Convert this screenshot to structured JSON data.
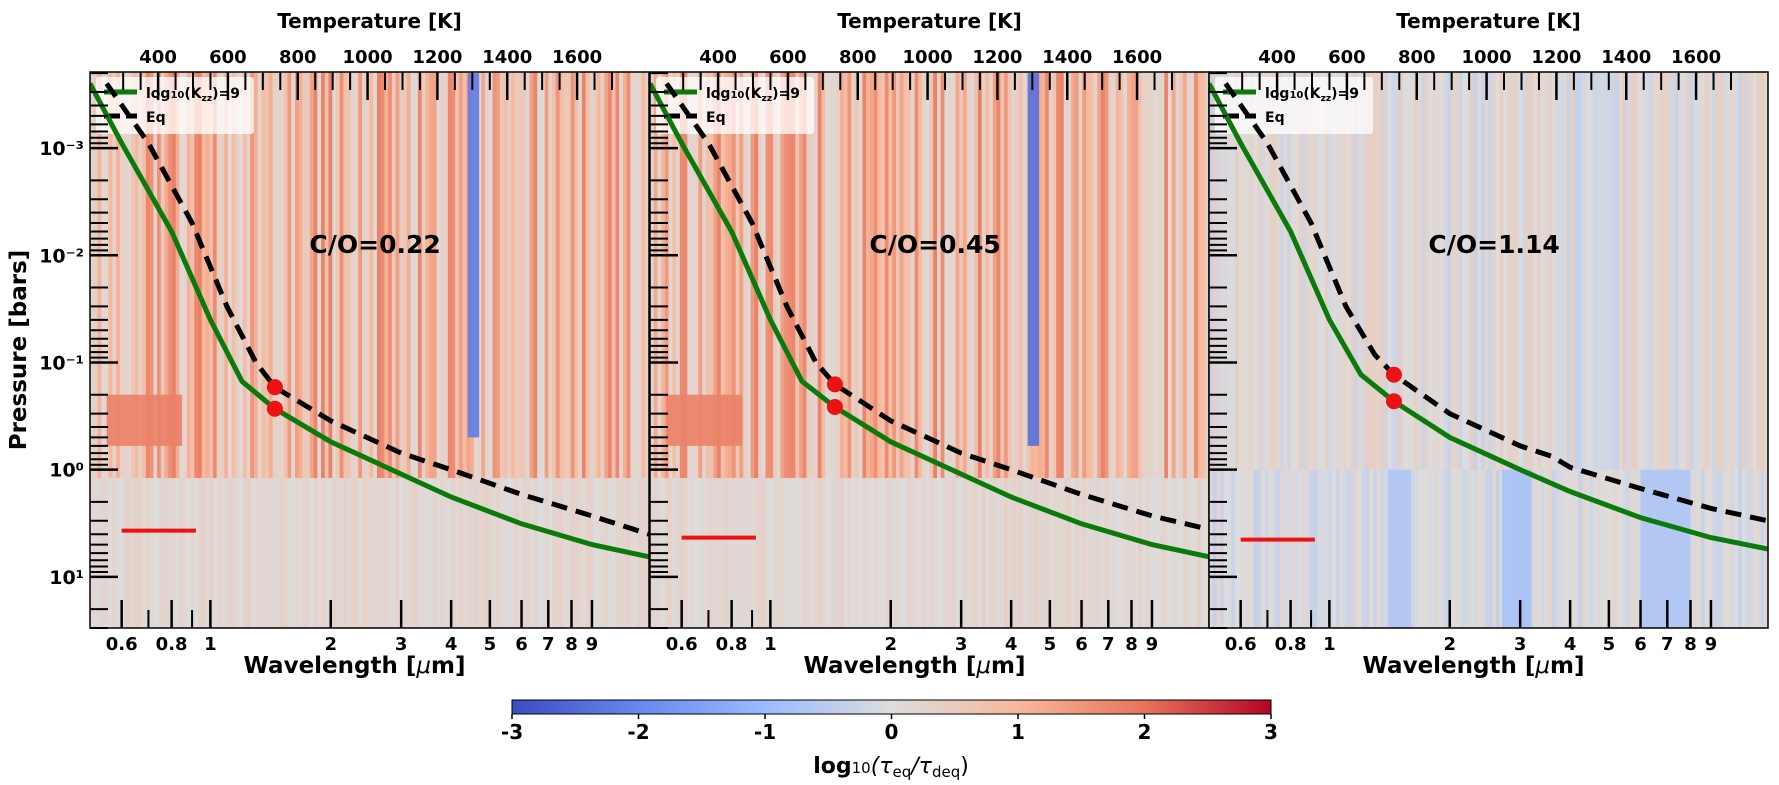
{
  "chart_data": {
    "type": "heatmap",
    "figure_title": "",
    "panels": [
      {
        "annotation": "C/O=0.22",
        "xlabel": "Wavelength [μm]",
        "ylabel": "Pressure [bars]",
        "top_xlabel": "Temperature [K]",
        "legend": [
          {
            "label": "log10(Kzz)=9",
            "style": "solid",
            "color": "#0a7a0a"
          },
          {
            "label": "Eq",
            "style": "dashed",
            "color": "#000000"
          }
        ],
        "red_dots": [
          {
            "wavelength_um": 1.45,
            "pressure_bar": 0.17
          },
          {
            "wavelength_um": 1.45,
            "pressure_bar": 0.27
          }
        ],
        "red_segment": {
          "wavelength_um": [
            0.6,
            0.92
          ],
          "pressure_bar": 3.7
        },
        "kzz_curve": [
          [
            0.5,
            0.00025
          ],
          [
            0.6,
            0.0009
          ],
          [
            0.8,
            0.006
          ],
          [
            1.0,
            0.04
          ],
          [
            1.2,
            0.15
          ],
          [
            1.45,
            0.27
          ],
          [
            2.0,
            0.55
          ],
          [
            3.0,
            1.1
          ],
          [
            4.0,
            1.8
          ],
          [
            6.0,
            3.2
          ],
          [
            9.0,
            5.0
          ],
          [
            12.5,
            6.5
          ]
        ],
        "eq_curve": [
          [
            0.55,
            0.00025
          ],
          [
            0.7,
            0.0009
          ],
          [
            0.9,
            0.005
          ],
          [
            1.1,
            0.03
          ],
          [
            1.3,
            0.1
          ],
          [
            1.45,
            0.17
          ],
          [
            2.0,
            0.35
          ],
          [
            3.0,
            0.7
          ],
          [
            4.0,
            1.0
          ],
          [
            6.0,
            1.7
          ],
          [
            9.0,
            2.7
          ],
          [
            12.5,
            4.0
          ]
        ],
        "features": [
          {
            "wavelength_um": [
              4.4,
              4.7
            ],
            "value": -2.2,
            "pressure_range": [
              0.0002,
              0.5
            ]
          },
          {
            "wavelength_um": [
              0.55,
              0.85
            ],
            "value": 1.8,
            "pressure_range": [
              0.2,
              0.6
            ]
          }
        ],
        "background": "mostly positive (red) vertical bands above ~1 bar, neutral below"
      },
      {
        "annotation": "C/O=0.45",
        "xlabel": "Wavelength [μm]",
        "top_xlabel": "Temperature [K]",
        "legend": [
          {
            "label": "log10(Kzz)=9",
            "style": "solid",
            "color": "#0a7a0a"
          },
          {
            "label": "Eq",
            "style": "dashed",
            "color": "#000000"
          }
        ],
        "red_dots": [
          {
            "wavelength_um": 1.45,
            "pressure_bar": 0.16
          },
          {
            "wavelength_um": 1.45,
            "pressure_bar": 0.26
          }
        ],
        "red_segment": {
          "wavelength_um": [
            0.6,
            0.92
          ],
          "pressure_bar": 4.3
        },
        "kzz_curve": [
          [
            0.5,
            0.00025
          ],
          [
            0.6,
            0.0009
          ],
          [
            0.8,
            0.006
          ],
          [
            1.0,
            0.04
          ],
          [
            1.2,
            0.15
          ],
          [
            1.45,
            0.26
          ],
          [
            2.0,
            0.55
          ],
          [
            3.0,
            1.1
          ],
          [
            4.0,
            1.8
          ],
          [
            6.0,
            3.2
          ],
          [
            9.0,
            5.0
          ],
          [
            12.5,
            6.5
          ]
        ],
        "eq_curve": [
          [
            0.55,
            0.00025
          ],
          [
            0.7,
            0.0009
          ],
          [
            0.9,
            0.005
          ],
          [
            1.1,
            0.03
          ],
          [
            1.3,
            0.1
          ],
          [
            1.45,
            0.16
          ],
          [
            2.0,
            0.35
          ],
          [
            3.0,
            0.7
          ],
          [
            4.0,
            1.0
          ],
          [
            6.0,
            1.7
          ],
          [
            9.0,
            2.7
          ],
          [
            12.5,
            3.6
          ]
        ],
        "features": [
          {
            "wavelength_um": [
              4.4,
              4.7
            ],
            "value": -2.4,
            "pressure_range": [
              0.0002,
              0.6
            ]
          },
          {
            "wavelength_um": [
              0.55,
              0.85
            ],
            "value": 1.8,
            "pressure_range": [
              0.2,
              0.6
            ]
          }
        ],
        "background": "mostly positive (red) vertical bands above ~1 bar, neutral below"
      },
      {
        "annotation": "C/O=1.14",
        "xlabel": "Wavelength [μm]",
        "top_xlabel": "Temperature [K]",
        "legend": [
          {
            "label": "log10(Kzz)=9",
            "style": "solid",
            "color": "#0a7a0a"
          },
          {
            "label": "Eq",
            "style": "dashed",
            "color": "#000000"
          }
        ],
        "red_dots": [
          {
            "wavelength_um": 1.45,
            "pressure_bar": 0.13
          },
          {
            "wavelength_um": 1.45,
            "pressure_bar": 0.23
          }
        ],
        "red_segment": {
          "wavelength_um": [
            0.6,
            0.92
          ],
          "pressure_bar": 4.5
        },
        "kzz_curve": [
          [
            0.5,
            0.00025
          ],
          [
            0.6,
            0.0009
          ],
          [
            0.8,
            0.006
          ],
          [
            1.0,
            0.04
          ],
          [
            1.2,
            0.13
          ],
          [
            1.45,
            0.23
          ],
          [
            2.0,
            0.5
          ],
          [
            3.0,
            1.0
          ],
          [
            4.0,
            1.6
          ],
          [
            6.0,
            2.8
          ],
          [
            9.0,
            4.3
          ],
          [
            12.5,
            5.5
          ]
        ],
        "eq_curve": [
          [
            0.55,
            0.00025
          ],
          [
            0.7,
            0.0009
          ],
          [
            0.9,
            0.005
          ],
          [
            1.1,
            0.03
          ],
          [
            1.3,
            0.085
          ],
          [
            1.45,
            0.13
          ],
          [
            2.0,
            0.3
          ],
          [
            3.0,
            0.6
          ],
          [
            3.6,
            0.75
          ],
          [
            4.0,
            0.95
          ],
          [
            6.0,
            1.5
          ],
          [
            9.0,
            2.3
          ],
          [
            12.5,
            3.0
          ]
        ],
        "features": [
          {
            "wavelength_um": [
              1.4,
              1.6
            ],
            "value": -0.7,
            "pressure_range": [
              1.0,
              30
            ]
          },
          {
            "wavelength_um": [
              2.7,
              3.2
            ],
            "value": -0.8,
            "pressure_range": [
              1.0,
              30
            ]
          },
          {
            "wavelength_um": [
              6.0,
              8.0
            ],
            "value": -0.7,
            "pressure_range": [
              1.0,
              30
            ]
          }
        ],
        "background": "near zero with weak red bands above ~1 bar and blue bands below"
      }
    ],
    "x_axis": {
      "label": "Wavelength [μm]",
      "scale": "log",
      "range": [
        0.5,
        12.5
      ],
      "ticks": [
        0.6,
        0.8,
        1,
        2,
        3,
        4,
        5,
        6,
        7,
        8,
        9
      ],
      "tick_labels": [
        "0.6",
        "0.8",
        "1",
        "2",
        "3",
        "4",
        "5",
        "6",
        "7",
        "8",
        "9"
      ]
    },
    "top_axis": {
      "label": "Temperature [K]",
      "scale": "linear",
      "range": [
        205,
        1806
      ],
      "ticks": [
        400,
        600,
        800,
        1000,
        1200,
        1400,
        1600
      ],
      "tick_labels": [
        "400",
        "600",
        "800",
        "1000",
        "1200",
        "1400",
        "1600"
      ]
    },
    "y_axis": {
      "label": "Pressure [bars]",
      "scale": "log",
      "inverted": true,
      "range": [
        0.000195,
        30
      ],
      "ticks": [
        0.001,
        0.01,
        0.1,
        1,
        10
      ],
      "tick_labels": [
        "10⁻³",
        "10⁻²",
        "10⁻¹",
        "10⁰",
        "10¹"
      ]
    },
    "colorbar": {
      "label": "log10(τeq/τdeq)",
      "range": [
        -3,
        3
      ],
      "ticks": [
        -3,
        -2,
        -1,
        0,
        1,
        2,
        3
      ],
      "tick_labels": [
        "-3",
        "-2",
        "-1",
        "0",
        "1",
        "2",
        "3"
      ],
      "colormap": "coolwarm",
      "orientation": "horizontal",
      "placement": "bottom-center"
    },
    "legend_placement": "top-left",
    "colors": {
      "kzz_line": "#0a7a0a",
      "eq_line": "#000000",
      "markers": "#ee1111",
      "neutral": "#dcdcdc"
    }
  },
  "labels": {
    "top_axis_title": "Temperature [K]",
    "x_axis_title_main": "Wavelength [",
    "x_axis_title_mu": "μ",
    "x_axis_title_end": "m]",
    "y_axis_title": "Pressure [bars]",
    "legend_kzz_log": "log",
    "legend_kzz_sub": "10",
    "legend_kzz_K": "(K",
    "legend_kzz_zz": "zz",
    "legend_kzz_tail": ")=9",
    "legend_eq": "Eq",
    "colorbar_log": "log",
    "colorbar_sub10": "10",
    "colorbar_open": "(τ",
    "colorbar_eq": "eq",
    "colorbar_slash": "/τ",
    "colorbar_deq": "deq",
    "colorbar_close": ")"
  }
}
